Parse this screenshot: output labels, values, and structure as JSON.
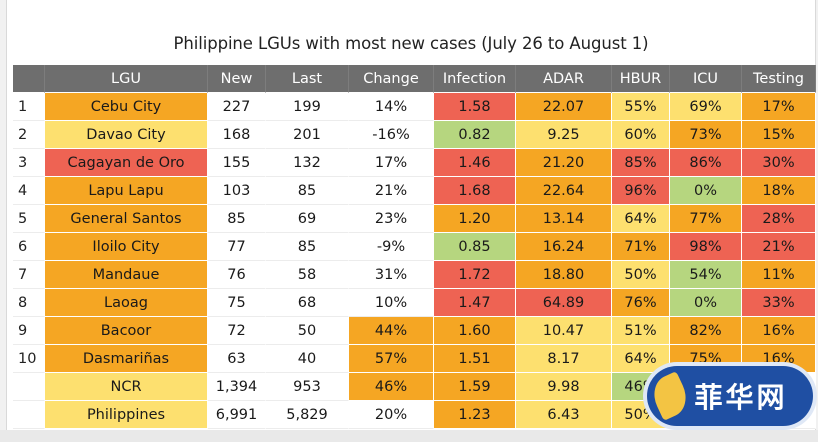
{
  "title": "Philippine LGUs with most new cases (July 26 to August 1)",
  "watermark_text": "菲华网",
  "colors": {
    "header": "#6e6e6e",
    "green": "#b6d67f",
    "yellow": "#fde06f",
    "orange": "#f5a623",
    "red": "#ee6353",
    "white": "#ffffff"
  },
  "chart_data": {
    "type": "table",
    "title": "Philippine LGUs with most new cases (July 26 to August 1)",
    "columns": [
      "",
      "LGU",
      "New",
      "Last",
      "Change",
      "Infection",
      "ADAR",
      "HBUR",
      "ICU",
      "Testing"
    ],
    "rows": [
      {
        "idx": "1",
        "lgu": "Cebu City",
        "new": "227",
        "last": "199",
        "change": "14%",
        "infection": "1.58",
        "adar": "22.07",
        "hbur": "55%",
        "icu": "69%",
        "testing": "17%"
      },
      {
        "idx": "2",
        "lgu": "Davao City",
        "new": "168",
        "last": "201",
        "change": "-16%",
        "infection": "0.82",
        "adar": "9.25",
        "hbur": "60%",
        "icu": "73%",
        "testing": "15%"
      },
      {
        "idx": "3",
        "lgu": "Cagayan de Oro",
        "new": "155",
        "last": "132",
        "change": "17%",
        "infection": "1.46",
        "adar": "21.20",
        "hbur": "85%",
        "icu": "86%",
        "testing": "30%"
      },
      {
        "idx": "4",
        "lgu": "Lapu Lapu",
        "new": "103",
        "last": "85",
        "change": "21%",
        "infection": "1.68",
        "adar": "22.64",
        "hbur": "96%",
        "icu": "0%",
        "testing": "18%"
      },
      {
        "idx": "5",
        "lgu": "General Santos",
        "new": "85",
        "last": "69",
        "change": "23%",
        "infection": "1.20",
        "adar": "13.14",
        "hbur": "64%",
        "icu": "77%",
        "testing": "28%"
      },
      {
        "idx": "6",
        "lgu": "Iloilo City",
        "new": "77",
        "last": "85",
        "change": "-9%",
        "infection": "0.85",
        "adar": "16.24",
        "hbur": "71%",
        "icu": "98%",
        "testing": "21%"
      },
      {
        "idx": "7",
        "lgu": "Mandaue",
        "new": "76",
        "last": "58",
        "change": "31%",
        "infection": "1.72",
        "adar": "18.80",
        "hbur": "50%",
        "icu": "54%",
        "testing": "11%"
      },
      {
        "idx": "8",
        "lgu": "Laoag",
        "new": "75",
        "last": "68",
        "change": "10%",
        "infection": "1.47",
        "adar": "64.89",
        "hbur": "76%",
        "icu": "0%",
        "testing": "33%"
      },
      {
        "idx": "9",
        "lgu": "Bacoor",
        "new": "72",
        "last": "50",
        "change": "44%",
        "infection": "1.60",
        "adar": "10.47",
        "hbur": "51%",
        "icu": "82%",
        "testing": "16%"
      },
      {
        "idx": "10",
        "lgu": "Dasmariñas",
        "new": "63",
        "last": "40",
        "change": "57%",
        "infection": "1.51",
        "adar": "8.17",
        "hbur": "64%",
        "icu": "75%",
        "testing": "16%"
      },
      {
        "idx": "",
        "lgu": "NCR",
        "new": "1,394",
        "last": "953",
        "change": "46%",
        "infection": "1.59",
        "adar": "9.98",
        "hbur": "46%",
        "icu": "",
        "testing": ""
      },
      {
        "idx": "",
        "lgu": "Philippines",
        "new": "6,991",
        "last": "5,829",
        "change": "20%",
        "infection": "1.23",
        "adar": "6.43",
        "hbur": "50%",
        "icu": "",
        "testing": ""
      }
    ],
    "cell_colors": [
      {
        "lgu": "orange",
        "change": "white",
        "infection": "red",
        "adar": "orange",
        "hbur": "yellow",
        "icu": "yellow",
        "testing": "orange"
      },
      {
        "lgu": "yellow",
        "change": "white",
        "infection": "green",
        "adar": "yellow",
        "hbur": "yellow",
        "icu": "orange",
        "testing": "orange"
      },
      {
        "lgu": "red",
        "change": "white",
        "infection": "red",
        "adar": "orange",
        "hbur": "red",
        "icu": "red",
        "testing": "red"
      },
      {
        "lgu": "orange",
        "change": "white",
        "infection": "red",
        "adar": "orange",
        "hbur": "red",
        "icu": "green",
        "testing": "orange"
      },
      {
        "lgu": "orange",
        "change": "white",
        "infection": "orange",
        "adar": "orange",
        "hbur": "yellow",
        "icu": "orange",
        "testing": "red"
      },
      {
        "lgu": "orange",
        "change": "white",
        "infection": "green",
        "adar": "orange",
        "hbur": "orange",
        "icu": "red",
        "testing": "red"
      },
      {
        "lgu": "orange",
        "change": "white",
        "infection": "red",
        "adar": "orange",
        "hbur": "yellow",
        "icu": "green",
        "testing": "orange"
      },
      {
        "lgu": "orange",
        "change": "white",
        "infection": "red",
        "adar": "red",
        "hbur": "orange",
        "icu": "green",
        "testing": "red"
      },
      {
        "lgu": "orange",
        "change": "orange",
        "infection": "orange",
        "adar": "yellow",
        "hbur": "yellow",
        "icu": "orange",
        "testing": "orange"
      },
      {
        "lgu": "orange",
        "change": "orange",
        "infection": "orange",
        "adar": "yellow",
        "hbur": "yellow",
        "icu": "orange",
        "testing": "orange"
      },
      {
        "lgu": "yellow",
        "change": "orange",
        "infection": "orange",
        "adar": "yellow",
        "hbur": "green",
        "icu": "white",
        "testing": "white"
      },
      {
        "lgu": "yellow",
        "change": "white",
        "infection": "orange",
        "adar": "yellow",
        "hbur": "yellow",
        "icu": "white",
        "testing": "white"
      }
    ]
  }
}
